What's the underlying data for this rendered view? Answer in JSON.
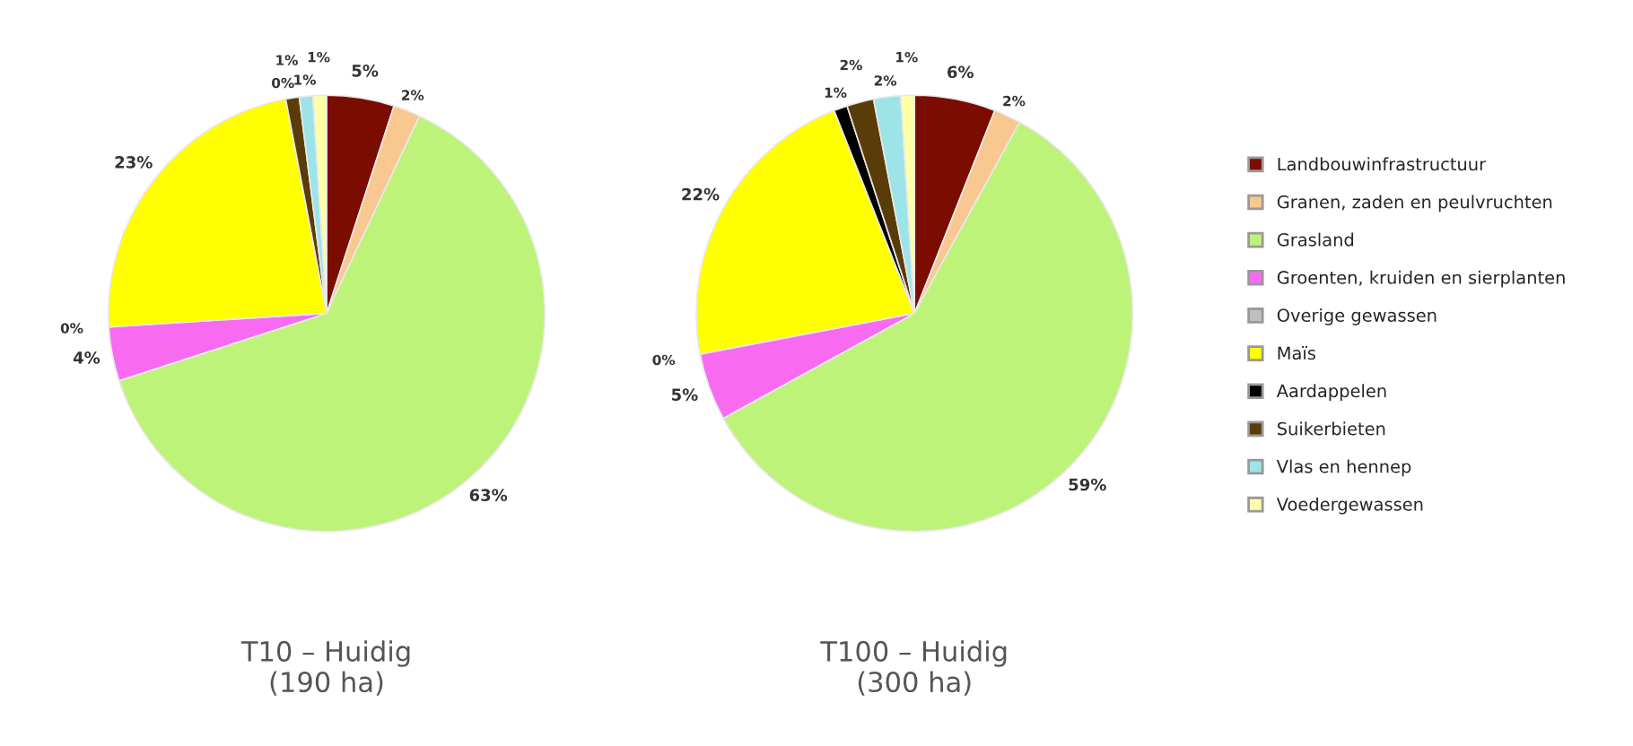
{
  "chart_data": [
    {
      "type": "pie",
      "title": "T10 – Huidig\n(190 ha)",
      "categories": [
        "Landbouwinfrastructuur",
        "Granen, zaden en peulvruchten",
        "Grasland",
        "Groenten, kruiden en sierplanten",
        "Overige gewassen",
        "Maïs",
        "Aardappelen",
        "Suikerbieten",
        "Vlas en hennep",
        "Voedergewassen"
      ],
      "values": [
        5,
        2,
        63,
        4,
        0,
        23,
        0,
        1,
        1,
        1
      ],
      "value_labels": [
        "5%",
        "2%",
        "63%",
        "4%",
        "0%",
        "23%",
        "0%",
        "1%",
        "1%",
        "1%"
      ],
      "colors": [
        "#7b0c00",
        "#f8c890",
        "#bef37a",
        "#f86af0",
        "#c0c0c0",
        "#ffff00",
        "#000000",
        "#5a3c08",
        "#9ce4e8",
        "#ffffa8"
      ],
      "legend": "right"
    },
    {
      "type": "pie",
      "title": "T100 – Huidig\n(300 ha)",
      "categories": [
        null,
        null,
        null,
        null,
        null,
        null,
        null,
        null,
        null,
        null
      ],
      "values": [
        6,
        2,
        59,
        5,
        0,
        22,
        1,
        2,
        2,
        1
      ],
      "value_labels": [
        "6%",
        "2%",
        "59%",
        "5%",
        "0%",
        "22%",
        "1%",
        "2%",
        "2%",
        "1%"
      ],
      "colors": [
        "#7b0c00",
        "#f8c890",
        "#bef37a",
        "#f86af0",
        "#c0c0c0",
        "#ffff00",
        "#000000",
        "#5a3c08",
        "#9ce4e8",
        "#ffffa8"
      ]
    }
  ]
}
